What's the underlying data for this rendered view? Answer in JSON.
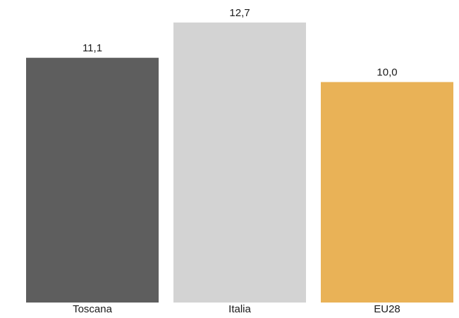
{
  "chart_data": {
    "type": "bar",
    "categories": [
      "Toscana",
      "Italia",
      "EU28"
    ],
    "values": [
      11.1,
      12.7,
      10.0
    ],
    "value_labels": [
      "11,1",
      "12,7",
      "10,0"
    ],
    "colors": [
      "#5e5e5e",
      "#d3d3d3",
      "#e9b257"
    ],
    "title": "",
    "xlabel": "",
    "ylabel": "",
    "ylim": [
      0,
      12.7
    ],
    "grid": false,
    "legend": "none"
  }
}
